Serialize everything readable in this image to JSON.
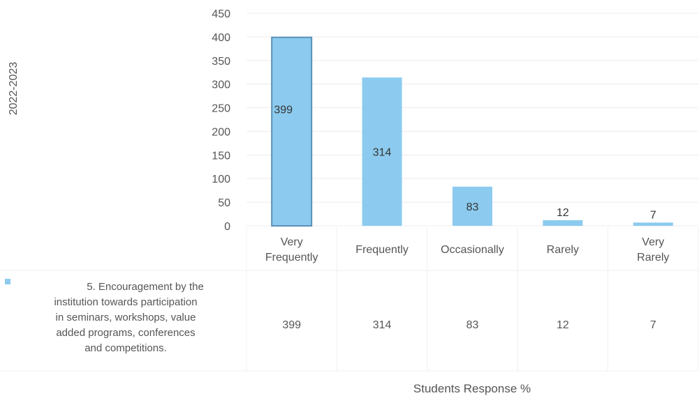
{
  "chart_data": {
    "type": "bar",
    "ylabel": "2022-2023",
    "xlabel": "Students Response %",
    "ylim": [
      0,
      450
    ],
    "yticks": [
      0,
      50,
      100,
      150,
      200,
      250,
      300,
      350,
      400,
      450
    ],
    "grid": true,
    "legend": "data-table",
    "categories": [
      [
        "Very",
        "Frequently"
      ],
      [
        "Frequently"
      ],
      [
        "Occasionally"
      ],
      [
        "Rarely"
      ],
      [
        "Very",
        "Rarely"
      ]
    ],
    "series": [
      {
        "name": "5. Encouragement by the institution towards participation in seminars, workshops, value added programs, conferences and competitions.",
        "name_lines": [
          "5. Encouragement by the",
          "institution towards participation",
          "in seminars, workshops, value",
          "added programs, conferences",
          "and competitions."
        ],
        "values": [
          399,
          314,
          83,
          12,
          7
        ],
        "color": "#8ccbef"
      }
    ],
    "highlight_border_color": "#5a8fb8"
  }
}
